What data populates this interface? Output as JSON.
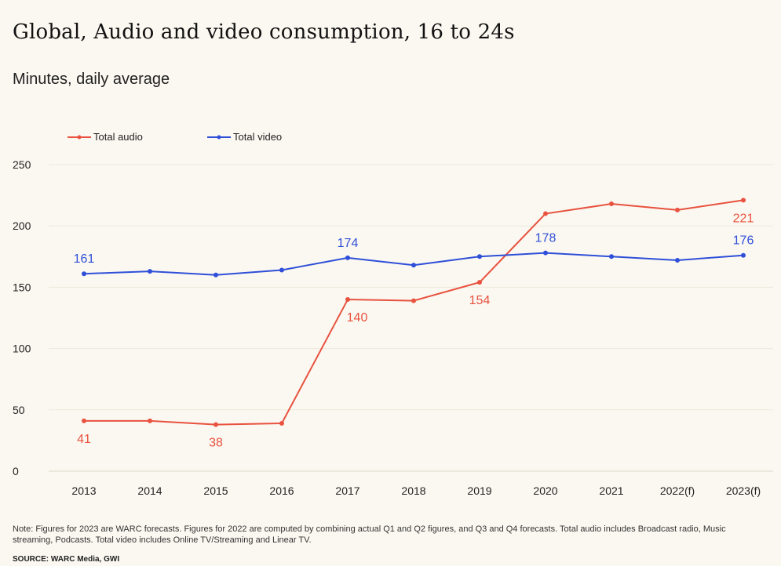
{
  "title": "Global, Audio and video consumption, 16 to 24s",
  "subtitle": "Minutes, daily average",
  "note": "Note: Figures for 2023 are WARC forecasts. Figures for 2022 are computed by combining actual Q1 and Q2 figures, and Q3 and Q4 forecasts. Total audio includes Broadcast radio, Music streaming, Podcasts. Total video includes Online TV/Streaming and Linear TV.",
  "source": "SOURCE: WARC Media, GWI",
  "chart_data": {
    "type": "line",
    "title": "Global, Audio and video consumption, 16 to 24s",
    "subtitle": "Minutes, daily average",
    "categories": [
      "2013",
      "2014",
      "2015",
      "2016",
      "2017",
      "2018",
      "2019",
      "2020",
      "2021",
      "2022(f)",
      "2023(f)"
    ],
    "ylim": [
      0,
      250
    ],
    "yticks": [
      0,
      50,
      100,
      150,
      200,
      250
    ],
    "grid": true,
    "legend_position": "top-left",
    "series": [
      {
        "name": "Total audio",
        "color": "#e8523f",
        "values": [
          41,
          41,
          38,
          39,
          140,
          139,
          154,
          210,
          218,
          213,
          221
        ],
        "labels": [
          {
            "index": 0,
            "text": "41",
            "position": "below"
          },
          {
            "index": 2,
            "text": "38",
            "position": "below"
          },
          {
            "index": 4,
            "text": "140",
            "position": "below"
          },
          {
            "index": 6,
            "text": "154",
            "position": "below"
          },
          {
            "index": 10,
            "text": "221",
            "position": "below"
          }
        ]
      },
      {
        "name": "Total video",
        "color": "#2f4fd8",
        "values": [
          161,
          163,
          160,
          164,
          174,
          168,
          175,
          178,
          175,
          172,
          176
        ],
        "labels": [
          {
            "index": 0,
            "text": "161",
            "position": "above"
          },
          {
            "index": 4,
            "text": "174",
            "position": "above"
          },
          {
            "index": 7,
            "text": "178",
            "position": "above"
          },
          {
            "index": 10,
            "text": "176",
            "position": "above"
          }
        ]
      }
    ]
  }
}
